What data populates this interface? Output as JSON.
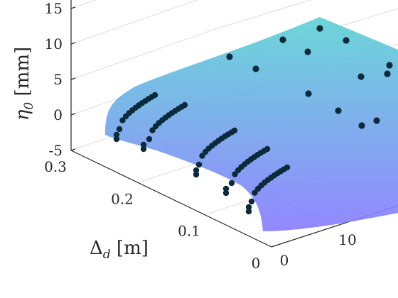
{
  "chart_data": {
    "type": "surface3d",
    "surface_color_top": "#5fd3d6",
    "surface_color_bottom": "#8a7dff",
    "point_color": "#0b2a3a",
    "z_axis": {
      "label": "η",
      "label_sub": "0",
      "label_unit": " [mm]",
      "ticks": [
        "-5",
        "0",
        "5",
        "10",
        "15"
      ],
      "range": [
        -5,
        16
      ]
    },
    "y_axis": {
      "label": "Δ",
      "label_sub": "d",
      "label_unit": " [m]",
      "ticks": [
        "0",
        "0.1",
        "0.2",
        "0.3"
      ],
      "range": [
        0,
        0.3
      ]
    },
    "x_axis": {
      "ticks": [
        "0",
        "10"
      ],
      "range": [
        0,
        20
      ]
    },
    "grid": true,
    "scatter_clusters": [
      {
        "x": 0,
        "delta": 0.28,
        "count": 12
      },
      {
        "x": 0,
        "delta": 0.22,
        "count": 12
      },
      {
        "x": 0,
        "delta": 0.15,
        "count": 12
      },
      {
        "x": 0,
        "delta": 0.09,
        "count": 12
      },
      {
        "x": 0,
        "delta": 0.04,
        "count": 12
      }
    ],
    "scatter_points": [
      {
        "x": 5,
        "delta": 0.25,
        "eta": 10.5
      },
      {
        "x": 6,
        "delta": 0.2,
        "eta": 10.2
      },
      {
        "x": 8,
        "delta": 0.25,
        "eta": 7.2
      },
      {
        "x": 9,
        "delta": 0.27,
        "eta": 8.6
      },
      {
        "x": 10,
        "delta": 0.22,
        "eta": 11.6
      },
      {
        "x": 12,
        "delta": 0.28,
        "eta": 13.8
      },
      {
        "x": 13,
        "delta": 0.22,
        "eta": 14.0
      },
      {
        "x": 11,
        "delta": 0.16,
        "eta": 6.8
      },
      {
        "x": 14,
        "delta": 0.2,
        "eta": 6.4
      },
      {
        "x": 14,
        "delta": 0.12,
        "eta": 5.9
      },
      {
        "x": 12,
        "delta": 0.1,
        "eta": 2.4
      },
      {
        "x": 17,
        "delta": 0.16,
        "eta": 6.8
      },
      {
        "x": 17,
        "delta": 0.08,
        "eta": 5.2
      },
      {
        "x": 15,
        "delta": 0.06,
        "eta": 2.6
      }
    ]
  }
}
